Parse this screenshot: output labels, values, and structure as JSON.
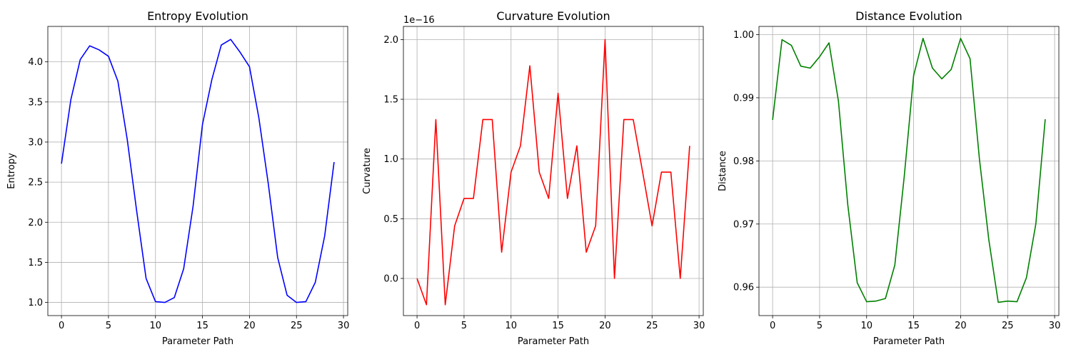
{
  "chart_data": [
    {
      "type": "line",
      "title": "Entropy Evolution",
      "xlabel": "Parameter Path",
      "ylabel": "Entropy",
      "offset_text": "",
      "xlim": [
        -1.45,
        30.45
      ],
      "ylim": [
        0.836,
        4.442
      ],
      "xticks": [
        0,
        5,
        10,
        15,
        20,
        25,
        30
      ],
      "xtick_labels": [
        "0",
        "5",
        "10",
        "15",
        "20",
        "25",
        "30"
      ],
      "yticks": [
        1.0,
        1.5,
        2.0,
        2.5,
        3.0,
        3.5,
        4.0
      ],
      "ytick_labels": [
        "1.0",
        "1.5",
        "2.0",
        "2.5",
        "3.0",
        "3.5",
        "4.0"
      ],
      "grid": true,
      "color": "#0000ff",
      "x": [
        0,
        1,
        2,
        3,
        4,
        5,
        6,
        7,
        8,
        9,
        10,
        11,
        12,
        13,
        14,
        15,
        16,
        17,
        18,
        19,
        20,
        21,
        22,
        23,
        24,
        25,
        26,
        27,
        28,
        29
      ],
      "series": [
        {
          "values": [
            2.73,
            3.53,
            4.03,
            4.2,
            4.15,
            4.07,
            3.76,
            3.03,
            2.14,
            1.3,
            1.01,
            1.0,
            1.06,
            1.42,
            2.2,
            3.22,
            3.78,
            4.21,
            4.28,
            4.12,
            3.94,
            3.3,
            2.48,
            1.56,
            1.09,
            1.0,
            1.01,
            1.25,
            1.83,
            2.75
          ]
        }
      ]
    },
    {
      "type": "line",
      "title": "Curvature Evolution",
      "xlabel": "Parameter Path",
      "ylabel": "Curvature",
      "offset_text": "1e−16",
      "xlim": [
        -1.45,
        30.45
      ],
      "ylim": [
        -0.311,
        2.11
      ],
      "xticks": [
        0,
        5,
        10,
        15,
        20,
        25,
        30
      ],
      "xtick_labels": [
        "0",
        "5",
        "10",
        "15",
        "20",
        "25",
        "30"
      ],
      "yticks": [
        0.0,
        0.5,
        1.0,
        1.5,
        2.0
      ],
      "ytick_labels": [
        "0.0",
        "0.5",
        "1.0",
        "1.5",
        "2.0"
      ],
      "grid": true,
      "color": "#ff0000",
      "x": [
        0,
        1,
        2,
        3,
        4,
        5,
        6,
        7,
        8,
        9,
        10,
        11,
        12,
        13,
        14,
        15,
        16,
        17,
        18,
        19,
        20,
        21,
        22,
        23,
        24,
        25,
        26,
        27,
        28,
        29
      ],
      "series": [
        {
          "values": [
            0.0,
            -0.22,
            1.33,
            -0.22,
            0.44,
            0.67,
            0.67,
            1.33,
            1.33,
            0.22,
            0.89,
            1.11,
            1.78,
            0.89,
            0.67,
            1.55,
            0.67,
            1.11,
            0.22,
            0.44,
            2.0,
            0.0,
            1.33,
            1.33,
            0.89,
            0.44,
            0.89,
            0.89,
            0.0,
            1.11
          ]
        }
      ]
    },
    {
      "type": "line",
      "title": "Distance Evolution",
      "xlabel": "Parameter Path",
      "ylabel": "Distance",
      "offset_text": "",
      "xlim": [
        -1.45,
        30.45
      ],
      "ylim": [
        0.9555,
        1.0013
      ],
      "xticks": [
        0,
        5,
        10,
        15,
        20,
        25,
        30
      ],
      "xtick_labels": [
        "0",
        "5",
        "10",
        "15",
        "20",
        "25",
        "30"
      ],
      "yticks": [
        0.96,
        0.97,
        0.98,
        0.99,
        1.0
      ],
      "ytick_labels": [
        "0.96",
        "0.97",
        "0.98",
        "0.99",
        "1.00"
      ],
      "grid": true,
      "color": "#008000",
      "x": [
        0,
        1,
        2,
        3,
        4,
        5,
        6,
        7,
        8,
        9,
        10,
        11,
        12,
        13,
        14,
        15,
        16,
        17,
        18,
        19,
        20,
        21,
        22,
        23,
        24,
        25,
        26,
        27,
        28,
        29
      ],
      "series": [
        {
          "values": [
            0.9865,
            0.9992,
            0.9983,
            0.995,
            0.9947,
            0.9965,
            0.9987,
            0.9895,
            0.973,
            0.9607,
            0.9577,
            0.9578,
            0.9582,
            0.9635,
            0.9775,
            0.9935,
            0.9994,
            0.9947,
            0.993,
            0.9945,
            0.9994,
            0.9962,
            0.9803,
            0.9675,
            0.9576,
            0.9578,
            0.9577,
            0.9615,
            0.97,
            0.9866
          ]
        }
      ]
    }
  ]
}
